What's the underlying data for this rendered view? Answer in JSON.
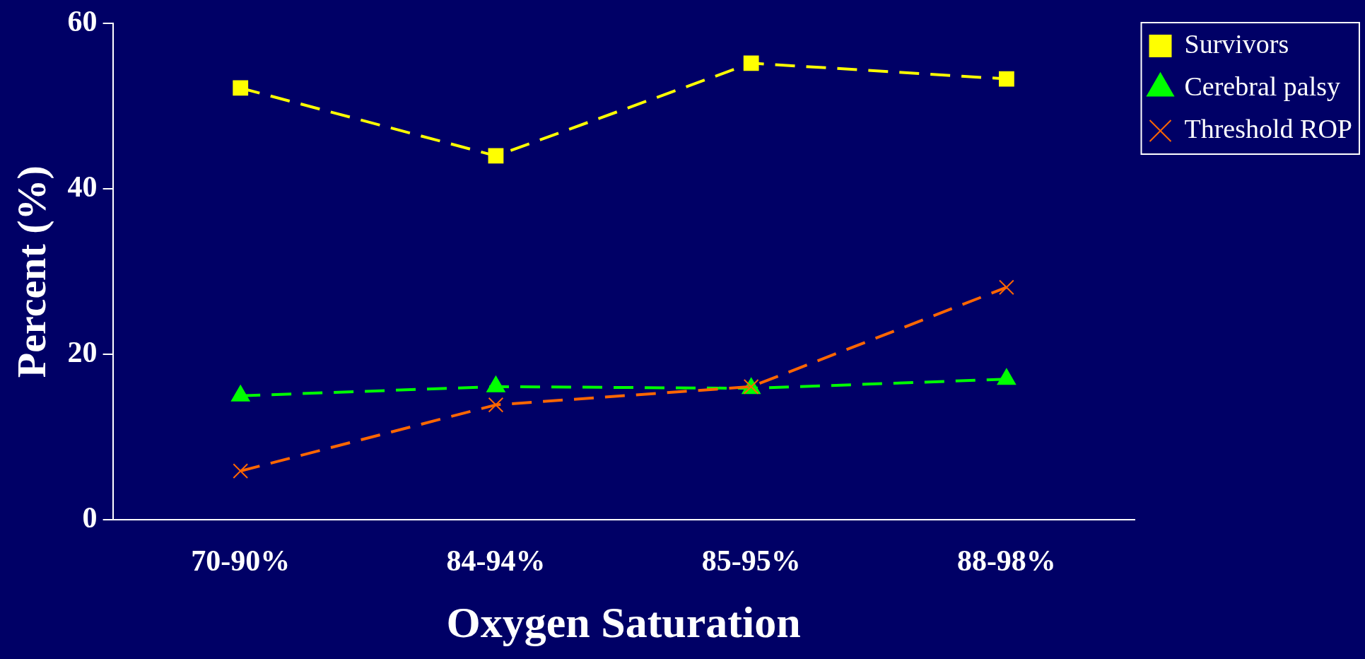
{
  "chart_data": {
    "type": "line",
    "xlabel": "Oxygen Saturation",
    "ylabel": "Percent (%)",
    "categories": [
      "70-90%",
      "84-94%",
      "85-95%",
      "88-98%"
    ],
    "series": [
      {
        "name": "Survivors",
        "color": "#ffff00",
        "values": [
          52.2,
          44,
          55.2,
          53.3
        ],
        "marker": "square",
        "line_style": "dashed"
      },
      {
        "name": "Cerebral palsy",
        "color": "#00ff00",
        "values": [
          15,
          16.1,
          15.9,
          17
        ],
        "marker": "triangle",
        "line_style": "dashed"
      },
      {
        "name": "Threshold ROP",
        "color": "#ff6600",
        "values": [
          5.9,
          13.9,
          16.1,
          28.1
        ],
        "marker": "cross",
        "line_style": "dashed"
      }
    ],
    "ylim": [
      0,
      60
    ],
    "yticks": [
      0,
      20,
      40,
      60
    ],
    "grid": false,
    "legend": "top right"
  }
}
